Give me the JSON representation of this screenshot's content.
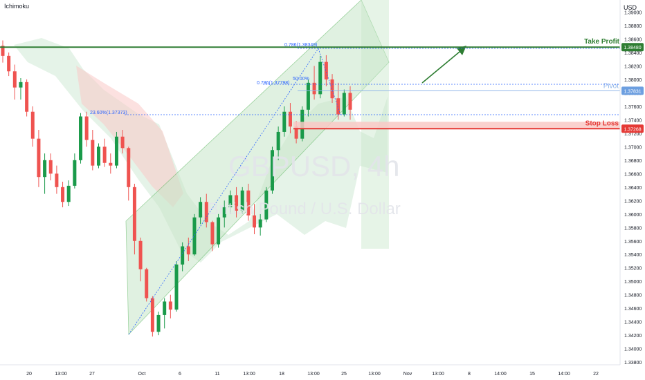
{
  "indicator_label": "Ichimoku",
  "currency_label": "USD",
  "watermark": {
    "symbol": "GBPUSD, 4h",
    "name": "British Pound / U.S. Dollar"
  },
  "colors": {
    "up": "#26a69a",
    "upFill": "#1a9a4a",
    "down": "#ef5350",
    "tp": "#2e7d32",
    "pivot": "#90b6e8",
    "sl": "#e53935",
    "fib": "#2962ff"
  },
  "annotations": {
    "take_profit": "Take Profit",
    "pivot": "Pivot",
    "stop_loss": "Stop Loss",
    "fib_786_top": "0.786(1.38349)",
    "fib_786_mid": "0.786(1.37798)",
    "fib_50": "50.00%",
    "fib_236": "23.60%(1.37373)"
  },
  "chart_data": {
    "type": "candlestick",
    "title": "",
    "ylim": [
      1.3376,
      1.3918
    ],
    "y_ticks": [
      "1.39000",
      "1.38800",
      "1.38600",
      "1.38400",
      "1.38200",
      "1.38000",
      "1.37800",
      "1.37600",
      "1.37400",
      "1.37200",
      "1.37000",
      "1.36800",
      "1.36600",
      "1.36400",
      "1.36200",
      "1.36000",
      "1.35800",
      "1.35600",
      "1.35400",
      "1.35200",
      "1.35000",
      "1.34800",
      "1.34600",
      "1.34400",
      "1.34200",
      "1.34000",
      "1.33800"
    ],
    "x_ticks": [
      "20",
      "13:00",
      "27",
      "Oct",
      "6",
      "11",
      "13:00",
      "18",
      "13:00",
      "25",
      "13:00",
      "Nov",
      "13:00",
      "8",
      "14:00",
      "15",
      "14:00",
      "22"
    ],
    "levels": {
      "take_profit": {
        "value": 1.3848,
        "label": "1.38480"
      },
      "pivot": {
        "value": 1.37831,
        "label": "1.37831"
      },
      "stop_loss": {
        "value": 1.37268,
        "label": "1.37268"
      }
    },
    "candles_note": "price path sampled from the visible 4h candles",
    "candles": [
      [
        1.385,
        1.3858,
        1.3825,
        1.3835
      ],
      [
        1.3835,
        1.384,
        1.3805,
        1.3812
      ],
      [
        1.3812,
        1.3822,
        1.377,
        1.3788
      ],
      [
        1.3788,
        1.3802,
        1.377,
        1.3796
      ],
      [
        1.3796,
        1.38,
        1.3745,
        1.3752
      ],
      [
        1.3752,
        1.376,
        1.37,
        1.3712
      ],
      [
        1.3712,
        1.3725,
        1.364,
        1.3655
      ],
      [
        1.3655,
        1.369,
        1.363,
        1.368
      ],
      [
        1.368,
        1.369,
        1.365,
        1.366
      ],
      [
        1.366,
        1.3672,
        1.363,
        1.364
      ],
      [
        1.364,
        1.3648,
        1.361,
        1.3618
      ],
      [
        1.3618,
        1.365,
        1.3612,
        1.3642
      ],
      [
        1.3642,
        1.369,
        1.3638,
        1.368
      ],
      [
        1.368,
        1.375,
        1.3675,
        1.3745
      ],
      [
        1.3745,
        1.3752,
        1.37,
        1.371
      ],
      [
        1.371,
        1.3725,
        1.3665,
        1.3672
      ],
      [
        1.3672,
        1.3705,
        1.3668,
        1.37
      ],
      [
        1.37,
        1.3712,
        1.367,
        1.3676
      ],
      [
        1.3676,
        1.369,
        1.366,
        1.3672
      ],
      [
        1.3672,
        1.3722,
        1.3668,
        1.3715
      ],
      [
        1.3715,
        1.3725,
        1.369,
        1.3698
      ],
      [
        1.3698,
        1.37,
        1.362,
        1.364
      ],
      [
        1.364,
        1.3645,
        1.354,
        1.356
      ],
      [
        1.356,
        1.3565,
        1.35,
        1.3518
      ],
      [
        1.3518,
        1.352,
        1.347,
        1.3475
      ],
      [
        1.3475,
        1.3478,
        1.3418,
        1.3425
      ],
      [
        1.3425,
        1.3455,
        1.342,
        1.345
      ],
      [
        1.345,
        1.3475,
        1.343,
        1.347
      ],
      [
        1.347,
        1.348,
        1.3445,
        1.3458
      ],
      [
        1.3458,
        1.353,
        1.3455,
        1.3525
      ],
      [
        1.3525,
        1.3558,
        1.3515,
        1.3552
      ],
      [
        1.3552,
        1.3565,
        1.353,
        1.354
      ],
      [
        1.354,
        1.36,
        1.3538,
        1.3595
      ],
      [
        1.3595,
        1.3625,
        1.3585,
        1.3618
      ],
      [
        1.3618,
        1.363,
        1.358,
        1.3588
      ],
      [
        1.3588,
        1.359,
        1.3545,
        1.3555
      ],
      [
        1.3555,
        1.36,
        1.355,
        1.3595
      ],
      [
        1.3595,
        1.362,
        1.358,
        1.361
      ],
      [
        1.361,
        1.3635,
        1.36,
        1.3628
      ],
      [
        1.3628,
        1.364,
        1.3595,
        1.3605
      ],
      [
        1.3605,
        1.364,
        1.36,
        1.3635
      ],
      [
        1.3635,
        1.3645,
        1.359,
        1.3598
      ],
      [
        1.3598,
        1.3615,
        1.357,
        1.358
      ],
      [
        1.358,
        1.36,
        1.3568,
        1.3592
      ],
      [
        1.3592,
        1.364,
        1.3588,
        1.3635
      ],
      [
        1.3635,
        1.37,
        1.363,
        1.3695
      ],
      [
        1.3695,
        1.373,
        1.368,
        1.3722
      ],
      [
        1.3722,
        1.376,
        1.3715,
        1.3752
      ],
      [
        1.3752,
        1.3765,
        1.372,
        1.373
      ],
      [
        1.373,
        1.3738,
        1.3705,
        1.3712
      ],
      [
        1.3712,
        1.376,
        1.3708,
        1.3755
      ],
      [
        1.3755,
        1.38,
        1.3745,
        1.3795
      ],
      [
        1.3795,
        1.382,
        1.377,
        1.3778
      ],
      [
        1.3778,
        1.3835,
        1.3772,
        1.3826
      ],
      [
        1.3826,
        1.3836,
        1.379,
        1.38
      ],
      [
        1.38,
        1.3808,
        1.3765,
        1.3772
      ],
      [
        1.3772,
        1.3795,
        1.374,
        1.3748
      ],
      [
        1.3748,
        1.3785,
        1.3745,
        1.378
      ],
      [
        1.378,
        1.379,
        1.374,
        1.3755
      ]
    ]
  }
}
